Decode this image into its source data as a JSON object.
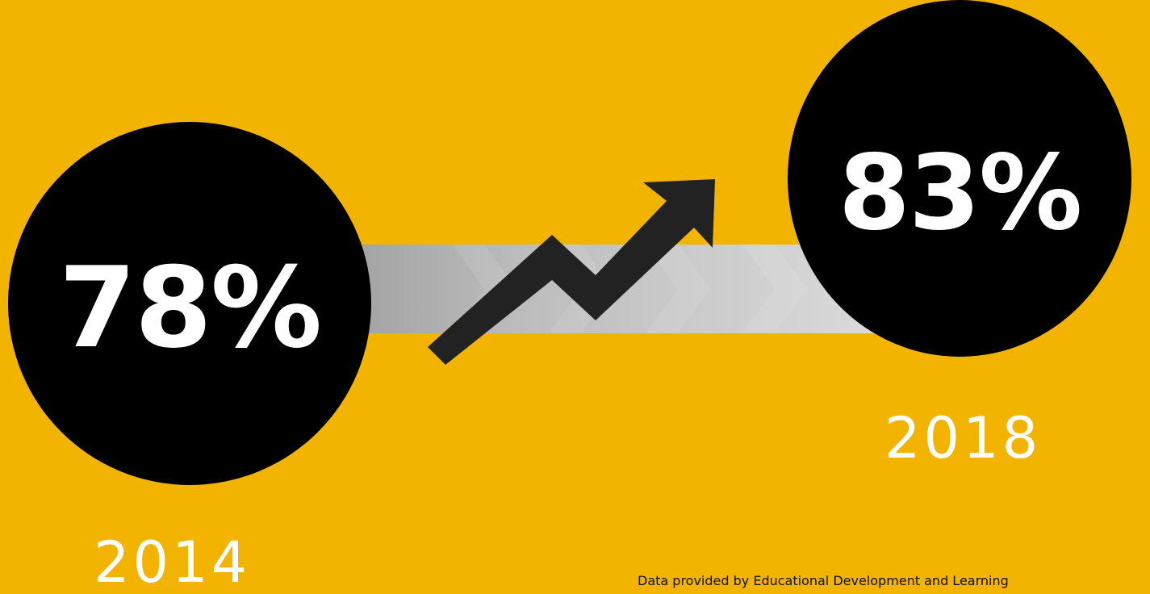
{
  "background_color": "#F2B400",
  "circle_color": "#000000",
  "text_color": "#FFFFFF",
  "band_color": "#CFCFCF",
  "arrow_color": "#222222",
  "arrow_icon": "trending-up-icon",
  "left": {
    "value": "78%",
    "year": "2014"
  },
  "right": {
    "value": "83%",
    "year": "2018"
  },
  "credit": "Data provided by Educational Development and Learning"
}
